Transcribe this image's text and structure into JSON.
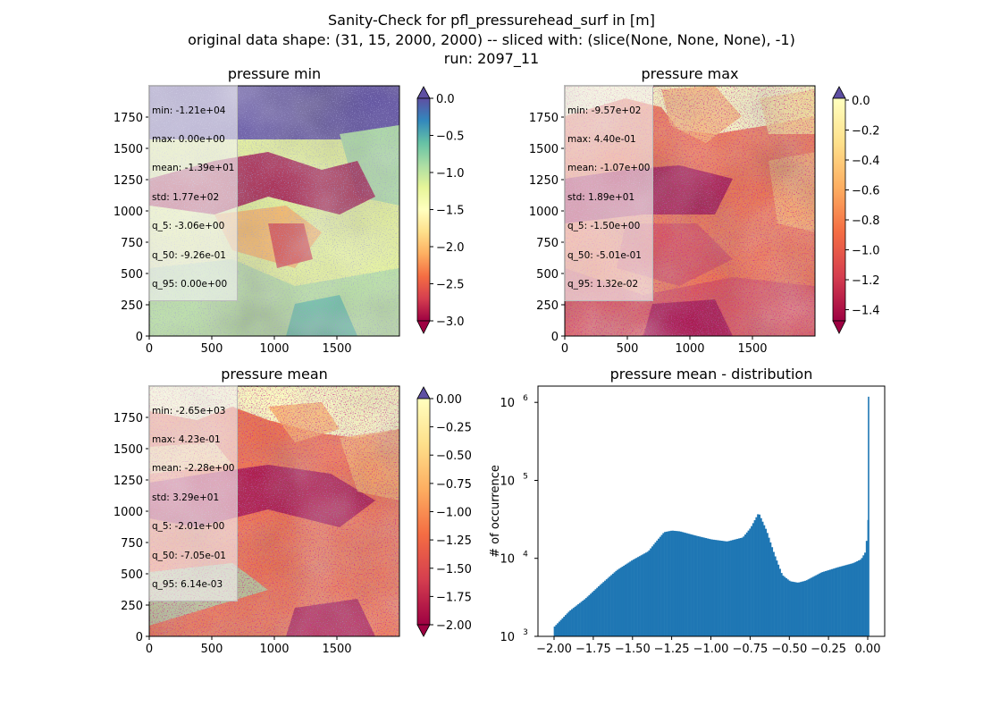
{
  "figure": {
    "title_line1": "Sanity-Check for pfl_pressurehead_surf in [m]",
    "title_line2": "original data shape: (31, 15, 2000, 2000) -- sliced with: (slice(None, None, None), -1)",
    "title_line3": "run: 2097_11"
  },
  "panels": [
    {
      "title": "pressure min",
      "map_axes": {
        "xticks": [
          "0",
          "500",
          "1000",
          "1500"
        ],
        "yticks": [
          "0",
          "250",
          "500",
          "750",
          "1000",
          "1250",
          "1500",
          "1750"
        ],
        "xlim": [
          0,
          2000
        ],
        "ylim": [
          0,
          2000
        ]
      },
      "colorbar": {
        "ticks": [
          "0.0",
          "−0.5",
          "−1.0",
          "−1.5",
          "−2.0",
          "−2.5",
          "−3.0"
        ],
        "vmin": -3.0,
        "vmax": 0.0,
        "extend_max_color": "#5e4fa2",
        "extend_min_color": "#9e0142"
      },
      "stats": [
        "min: -1.21e+04",
        "max: 0.00e+00",
        "mean: -1.39e+01",
        "std: 1.77e+02",
        "q_5: -3.06e+00",
        "q_50: -9.26e-01",
        "q_95: 0.00e+00"
      ]
    },
    {
      "title": "pressure max",
      "map_axes": {
        "xticks": [
          "0",
          "500",
          "1000",
          "1500"
        ],
        "yticks": [
          "0",
          "250",
          "500",
          "750",
          "1000",
          "1250",
          "1500",
          "1750"
        ],
        "xlim": [
          0,
          2000
        ],
        "ylim": [
          0,
          2000
        ]
      },
      "colorbar": {
        "ticks": [
          "0.0",
          "−0.2",
          "−0.4",
          "−0.6",
          "−0.8",
          "−1.0",
          "−1.2",
          "−1.4"
        ],
        "vmin": -1.5,
        "vmax": 0.0,
        "extend_max_color": "#5e4fa2",
        "extend_min_color": "#9e0142"
      },
      "stats": [
        "min: -9.57e+02",
        "max: 4.40e-01",
        "mean: -1.07e+00",
        "std: 1.89e+01",
        "q_5: -1.50e+00",
        "q_50: -5.01e-01",
        "q_95: 1.32e-02"
      ]
    },
    {
      "title": "pressure mean",
      "map_axes": {
        "xticks": [
          "0",
          "500",
          "1000",
          "1500"
        ],
        "yticks": [
          "0",
          "250",
          "500",
          "750",
          "1000",
          "1250",
          "1500",
          "1750"
        ],
        "xlim": [
          0,
          2000
        ],
        "ylim": [
          0,
          2000
        ]
      },
      "colorbar": {
        "ticks": [
          "0.00",
          "−0.25",
          "−0.50",
          "−0.75",
          "−1.00",
          "−1.25",
          "−1.50",
          "−1.75",
          "−2.00"
        ],
        "vmin": -2.0,
        "vmax": 0.0,
        "extend_max_color": "#5e4fa2",
        "extend_min_color": "#9e0142"
      },
      "stats": [
        "min: -2.65e+03",
        "max: 4.23e-01",
        "mean: -2.28e+00",
        "std: 3.29e+01",
        "q_5: -2.01e+00",
        "q_50: -7.05e-01",
        "q_95: 6.14e-03"
      ]
    }
  ],
  "histogram": {
    "title": "pressure mean - distribution",
    "ylabel": "# of occurrence",
    "xticks": [
      "−2.00",
      "−1.75",
      "−1.50",
      "−1.25",
      "−1.00",
      "−0.75",
      "−0.50",
      "−0.25",
      "0.00"
    ],
    "ytick_exponents": [
      "3",
      "4",
      "5",
      "6"
    ],
    "bar_color": "#1f77b4"
  },
  "chart_data": [
    {
      "type": "heatmap",
      "title": "pressure min",
      "colormap": "Spectral",
      "vmin": -3.0,
      "vmax": 0.0,
      "xlim": [
        0,
        2000
      ],
      "ylim": [
        0,
        2000
      ]
    },
    {
      "type": "heatmap",
      "title": "pressure max",
      "colormap": "Spectral",
      "vmin": -1.5,
      "vmax": 0.0,
      "xlim": [
        0,
        2000
      ],
      "ylim": [
        0,
        2000
      ]
    },
    {
      "type": "heatmap",
      "title": "pressure mean",
      "colormap": "Spectral",
      "vmin": -2.0,
      "vmax": 0.0,
      "xlim": [
        0,
        2000
      ],
      "ylim": [
        0,
        2000
      ]
    },
    {
      "type": "bar",
      "title": "pressure mean - distribution",
      "xlabel": "",
      "ylabel": "# of occurrence",
      "yscale": "log",
      "xlim": [
        -2.1,
        0.1
      ],
      "ylim": [
        1000,
        1500000
      ],
      "x": [
        -2.0,
        -1.9,
        -1.8,
        -1.7,
        -1.6,
        -1.5,
        -1.4,
        -1.35,
        -1.3,
        -1.25,
        -1.2,
        -1.1,
        -1.0,
        -0.9,
        -0.8,
        -0.75,
        -0.7,
        -0.65,
        -0.6,
        -0.55,
        -0.5,
        -0.45,
        -0.4,
        -0.3,
        -0.2,
        -0.1,
        -0.05,
        -0.02,
        -0.005,
        0.0
      ],
      "values": [
        1300,
        2100,
        3000,
        4600,
        6900,
        9300,
        12000,
        16000,
        21000,
        22000,
        21500,
        19000,
        17000,
        16000,
        18000,
        24000,
        37000,
        22000,
        11000,
        6000,
        5000,
        4800,
        5100,
        6500,
        7500,
        8500,
        9500,
        12000,
        30000,
        1100000
      ]
    }
  ]
}
